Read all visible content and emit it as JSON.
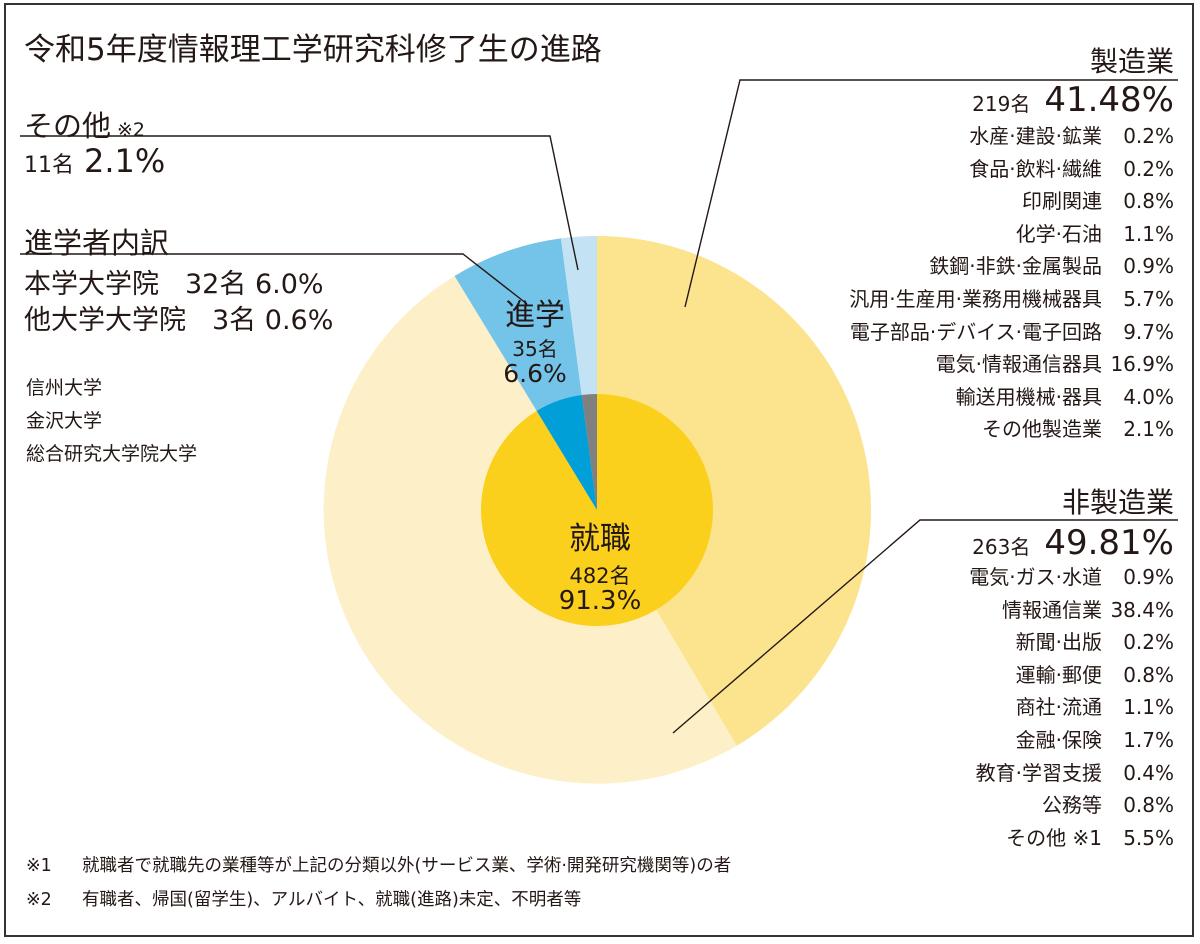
{
  "title": "令和5年度情報理工学研究科修了生の進路",
  "colors": {
    "manufacturing": "#fce38d",
    "non_manufacturing": "#fdf0c8",
    "graduate_school": "#74c3e8",
    "other": "#c3e2f4",
    "employment_inner": "#fbd01c",
    "graduate_inner": "#009fd8",
    "other_inner": "#808080",
    "border": "#333333"
  },
  "other": {
    "label": "その他",
    "note_mark": "※2",
    "count": "11名",
    "pct": "2.1%"
  },
  "graduate_breakdown": {
    "heading": "進学者内訳",
    "rows": [
      {
        "name": "本学大学院",
        "value": "32名 6.0%"
      },
      {
        "name": "他大学大学院",
        "value": "3名 0.6%"
      }
    ],
    "universities": [
      "信州大学",
      "金沢大学",
      "総合研究大学院大学"
    ]
  },
  "manufacturing": {
    "label": "製造業",
    "count": "219名",
    "pct": "41.48%",
    "items": [
      {
        "name": "水産·建設·鉱業",
        "pct": "0.2%"
      },
      {
        "name": "食品·飲料·繊維",
        "pct": "0.2%"
      },
      {
        "name": "印刷関連",
        "pct": "0.8%"
      },
      {
        "name": "化学·石油",
        "pct": "1.1%"
      },
      {
        "name": "鉄鋼·非鉄·金属製品",
        "pct": "0.9%"
      },
      {
        "name": "汎用·生産用·業務用機械器具",
        "pct": "5.7%"
      },
      {
        "name": "電子部品·デバイス·電子回路",
        "pct": "9.7%"
      },
      {
        "name": "電気·情報通信器具",
        "pct": "16.9%"
      },
      {
        "name": "輸送用機械·器具",
        "pct": "4.0%"
      },
      {
        "name": "その他製造業",
        "pct": "2.1%"
      }
    ]
  },
  "non_manufacturing": {
    "label": "非製造業",
    "count": "263名",
    "pct": "49.81%",
    "items": [
      {
        "name": "電気·ガス·水道",
        "pct": "0.9%"
      },
      {
        "name": "情報通信業",
        "pct": "38.4%"
      },
      {
        "name": "新聞·出版",
        "pct": "0.2%"
      },
      {
        "name": "運輸·郵便",
        "pct": "0.8%"
      },
      {
        "name": "商社·流通",
        "pct": "1.1%"
      },
      {
        "name": "金融·保険",
        "pct": "1.7%"
      },
      {
        "name": "教育·学習支援",
        "pct": "0.4%"
      },
      {
        "name": "公務等",
        "pct": "0.8%"
      },
      {
        "name": "その他 ※1",
        "pct": "5.5%"
      }
    ]
  },
  "center_labels": {
    "employment": {
      "label": "就職",
      "count": "482名",
      "pct": "91.3%"
    },
    "graduate": {
      "label": "進学",
      "count": "35名",
      "pct": "6.6%"
    }
  },
  "notes": [
    {
      "mark": "※1",
      "text": "就職者で就職先の業種等が上記の分類以外(サービス業、学術·開発研究機関等)の者"
    },
    {
      "mark": "※2",
      "text": "有職者、帰国(留学生)、アルバイト、就職(進路)未定、不明者等"
    }
  ],
  "chart_data": {
    "type": "pie",
    "title": "令和5年度情報理工学研究科修了生の進路",
    "outer_ring": {
      "categories": [
        "製造業",
        "非製造業",
        "進学",
        "その他"
      ],
      "values": [
        41.48,
        49.81,
        6.6,
        2.1
      ],
      "counts": [
        219,
        263,
        35,
        11
      ]
    },
    "inner_ring": {
      "categories": [
        "就職",
        "進学",
        "その他"
      ],
      "values": [
        91.3,
        6.6,
        2.1
      ],
      "counts": [
        482,
        35,
        11
      ]
    }
  }
}
